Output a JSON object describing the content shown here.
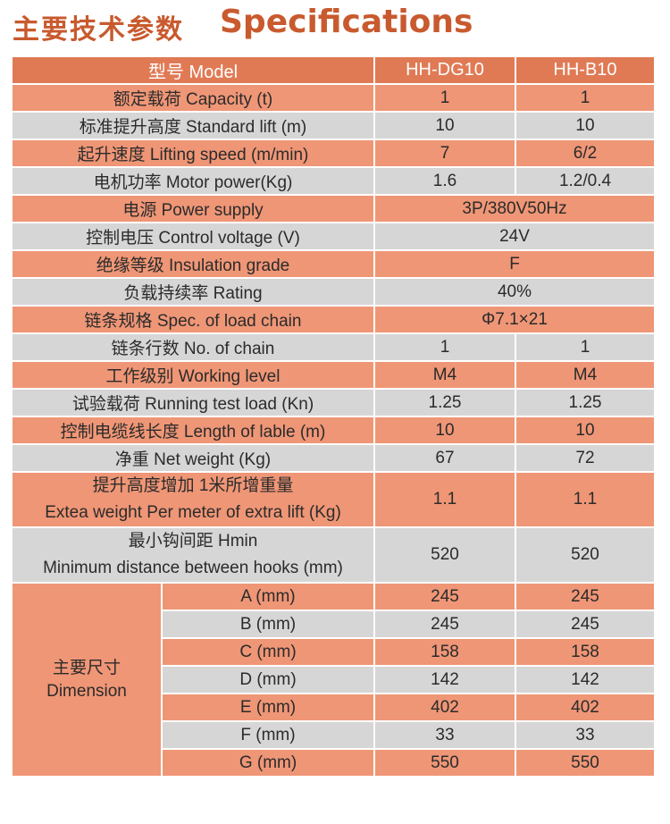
{
  "title": {
    "cn": "主要技术参数",
    "en": "Specifications"
  },
  "header": {
    "param": "型号  Model",
    "m1": "HH-DG10",
    "m2": "HH-B10"
  },
  "rows": [
    {
      "label": "额定载荷  Capacity (t)",
      "v1": "1",
      "v2": "1"
    },
    {
      "label": "标准提升高度  Standard  lift (m)",
      "v1": "10",
      "v2": "10"
    },
    {
      "label": "起升速度 Lifting speed (m/min)",
      "v1": "7",
      "v2": "6/2"
    },
    {
      "label": "电机功率 Motor power(Kg)",
      "v1": "1.6",
      "v2": "1.2/0.4"
    },
    {
      "label": "电源  Power supply",
      "merged": "3P/380V50Hz"
    },
    {
      "label": "控制电压 Control voltage (V)",
      "merged": "24V"
    },
    {
      "label": "绝缘等级  Insulation grade",
      "merged": "F"
    },
    {
      "label": "负载持续率  Rating",
      "merged": "40%"
    },
    {
      "label": "链条规格  Spec. of load chain",
      "merged": "Φ7.1×21"
    },
    {
      "label": "链条行数  No. of chain",
      "v1": "1",
      "v2": "1"
    },
    {
      "label": "工作级别 Working level",
      "v1": "M4",
      "v2": "M4"
    },
    {
      "label": "试验载荷  Running test load (Kn)",
      "v1": "1.25",
      "v2": "1.25"
    },
    {
      "label": "控制电缆线长度  Length of lable (m)",
      "v1": "10",
      "v2": "10"
    },
    {
      "label": "净重  Net weight (Kg)",
      "v1": "67",
      "v2": "72"
    }
  ],
  "extra_weight": {
    "line1": "提升高度增加  1米所增重量",
    "line2": "Extea weight Per meter of extra lift (Kg)",
    "v1": "1.1",
    "v2": "1.1"
  },
  "hmin": {
    "line1": "最小钩间距 Hmin",
    "line2": "Minimum distance between hooks (mm)",
    "v1": "520",
    "v2": "520"
  },
  "dimension": {
    "label_cn": "主要尺寸",
    "label_en": "Dimension",
    "rows": [
      {
        "label": "A (mm)",
        "v1": "245",
        "v2": "245"
      },
      {
        "label": "B (mm)",
        "v1": "245",
        "v2": "245"
      },
      {
        "label": "C (mm)",
        "v1": "158",
        "v2": "158"
      },
      {
        "label": "D (mm)",
        "v1": "142",
        "v2": "142"
      },
      {
        "label": "E (mm)",
        "v1": "402",
        "v2": "402"
      },
      {
        "label": "F (mm)",
        "v1": "33",
        "v2": "33"
      },
      {
        "label": "G (mm)",
        "v1": "550",
        "v2": "550"
      }
    ]
  },
  "colors": {
    "orange_row": "#ef9676",
    "gray_row": "#d6d6d6",
    "header": "#e07a55",
    "title": "#c85a2e"
  }
}
